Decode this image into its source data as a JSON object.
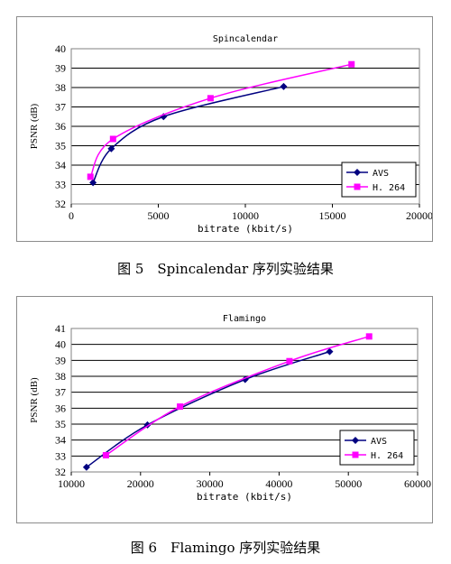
{
  "chart_data": [
    {
      "type": "line",
      "title": "Spincalendar",
      "xlabel": "bitrate (kbit/s)",
      "ylabel": "PSNR (dB)",
      "xlim": [
        0,
        20000
      ],
      "ylim": [
        32,
        40
      ],
      "xticks": [
        "0",
        "5000",
        "10000",
        "15000",
        "20000"
      ],
      "yticks": [
        "32",
        "33",
        "34",
        "35",
        "36",
        "37",
        "38",
        "39",
        "40"
      ],
      "grid": true,
      "legend_position": "bottom-right",
      "series": [
        {
          "name": "AVS",
          "color": "#000080",
          "marker": "diamond",
          "x": [
            1250,
            2300,
            5300,
            12200
          ],
          "y": [
            33.1,
            34.85,
            36.5,
            38.05
          ]
        },
        {
          "name": "H. 264",
          "color": "#ff00ff",
          "marker": "square",
          "x": [
            1100,
            2400,
            8000,
            16100
          ],
          "y": [
            33.4,
            35.35,
            37.45,
            39.2
          ]
        }
      ]
    },
    {
      "type": "line",
      "title": "Flamingo",
      "xlabel": "bitrate (kbit/s)",
      "ylabel": "PSNR (dB)",
      "xlim": [
        10000,
        60000
      ],
      "ylim": [
        32,
        41
      ],
      "xticks": [
        "10000",
        "20000",
        "30000",
        "40000",
        "50000",
        "60000"
      ],
      "yticks": [
        "32",
        "33",
        "34",
        "35",
        "36",
        "37",
        "38",
        "39",
        "40",
        "41"
      ],
      "grid": true,
      "legend_position": "bottom-right",
      "series": [
        {
          "name": "AVS",
          "color": "#000080",
          "marker": "diamond",
          "x": [
            12200,
            21000,
            35100,
            47300
          ],
          "y": [
            32.3,
            34.95,
            37.8,
            39.55
          ]
        },
        {
          "name": "H. 264",
          "color": "#ff00ff",
          "marker": "square",
          "x": [
            15000,
            25700,
            41500,
            53000
          ],
          "y": [
            33.05,
            36.1,
            38.95,
            40.5
          ]
        }
      ]
    }
  ],
  "captions": [
    "图 5　Spincalendar 序列实验结果",
    "图 6　Flamingo 序列实验结果"
  ]
}
